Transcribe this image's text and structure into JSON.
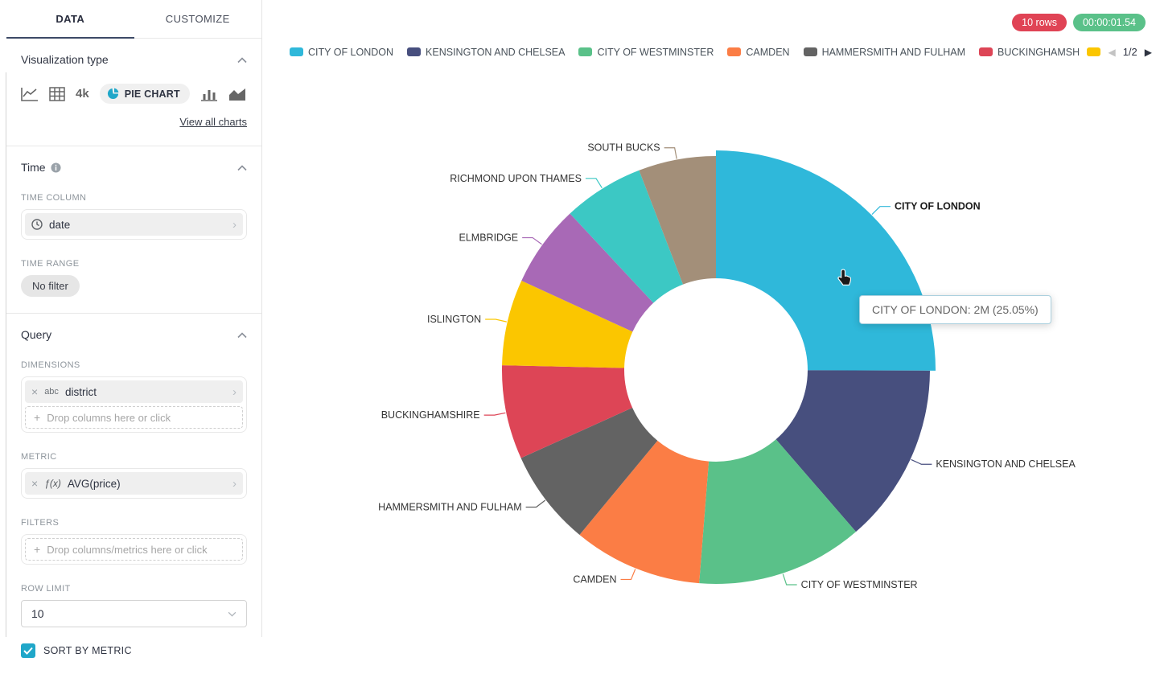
{
  "sidebar": {
    "tabs": [
      {
        "label": "DATA"
      },
      {
        "label": "CUSTOMIZE"
      }
    ],
    "viz_type": {
      "title": "Visualization type",
      "big_number_icon_text": "4k",
      "selected_chart": "PIE CHART",
      "view_all_label": "View all charts"
    },
    "time": {
      "title": "Time",
      "time_column_label": "TIME COLUMN",
      "time_column_value": "date",
      "time_range_label": "TIME RANGE",
      "time_range_value": "No filter"
    },
    "query": {
      "title": "Query",
      "dimensions_label": "DIMENSIONS",
      "dimension_chip": {
        "type_tag": "abc",
        "name": "district"
      },
      "dimensions_placeholder": "Drop columns here or click",
      "metric_label": "METRIC",
      "metric_chip": {
        "type_tag": "ƒ(x)",
        "name": "AVG(price)"
      },
      "filters_label": "FILTERS",
      "filters_placeholder": "Drop columns/metrics here or click",
      "row_limit_label": "ROW LIMIT",
      "row_limit_value": "10",
      "sort_by_metric_label": "SORT BY METRIC",
      "sort_by_metric_checked": true
    }
  },
  "header": {
    "badges": [
      {
        "label": "10 rows",
        "color": "#E04355"
      },
      {
        "label": "00:00:01.54",
        "color": "#5AC189"
      }
    ]
  },
  "legend": {
    "visible_count": 6,
    "truncated_next_swatch": true,
    "page": "1/2",
    "prev_arrow": "◀",
    "next_arrow": "▶"
  },
  "chart_data": {
    "type": "pie",
    "donut": true,
    "dimension": "district",
    "metric": "AVG(price)",
    "sorted_by_metric": true,
    "slices": [
      {
        "name": "CITY OF LONDON",
        "percent": 25.05,
        "value_label": "2M",
        "color": "#2FB8DA",
        "emphasis": true
      },
      {
        "name": "KENSINGTON AND CHELSEA",
        "percent": 13.6,
        "color": "#474F7E"
      },
      {
        "name": "CITY OF WESTMINSTER",
        "percent": 12.6,
        "color": "#5AC189"
      },
      {
        "name": "CAMDEN",
        "percent": 9.75,
        "color": "#FB7D45"
      },
      {
        "name": "HAMMERSMITH AND FULHAM",
        "percent": 7.25,
        "color": "#636363"
      },
      {
        "name": "BUCKINGHAMSHIRE",
        "percent": 7.1,
        "color": "#DD4556"
      },
      {
        "name": "ISLINGTON",
        "percent": 6.5,
        "color": "#FBC600"
      },
      {
        "name": "ELMBRIDGE",
        "percent": 6.2,
        "color": "#A869B6"
      },
      {
        "name": "RICHMOND UPON THAMES",
        "percent": 6.1,
        "color": "#3CC8C4"
      },
      {
        "name": "SOUTH BUCKS",
        "percent": 5.85,
        "color": "#A38F79"
      }
    ]
  },
  "tooltip": {
    "text": "CITY OF LONDON: 2M (25.05%)"
  }
}
